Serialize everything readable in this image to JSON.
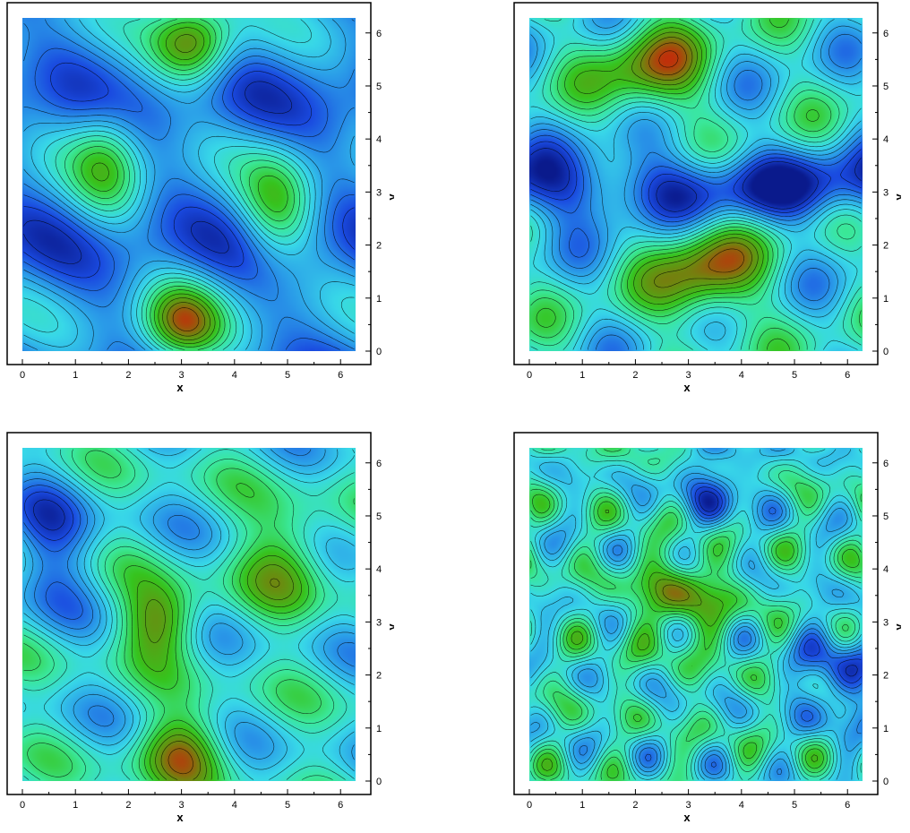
{
  "chart_data": [
    {
      "type": "heatmap",
      "title": "",
      "xlabel": "x",
      "ylabel": "y",
      "xlim": [
        0,
        6.2832
      ],
      "ylim": [
        0,
        6.2832
      ],
      "xticks": [
        "0",
        "1",
        "2",
        "3",
        "4",
        "5",
        "6"
      ],
      "yticks": [
        "0",
        "1",
        "2",
        "3",
        "4",
        "5",
        "6"
      ],
      "contour_lines": true,
      "colormap": [
        "#0a1a8c",
        "#1a4ae0",
        "#2a9ae8",
        "#38d8e8",
        "#3ae89a",
        "#36c41e",
        "#6a8c10",
        "#c0300a"
      ],
      "features": "smooth sinusoidal field, two diagonal high-value ridges near (3,0.5) and (3.2,5.7)"
    },
    {
      "type": "heatmap",
      "title": "",
      "xlabel": "x",
      "ylabel": "y",
      "xlim": [
        0,
        6.2832
      ],
      "ylim": [
        0,
        6.2832
      ],
      "xticks": [
        "0",
        "1",
        "2",
        "3",
        "4",
        "5",
        "6"
      ],
      "yticks": [
        "0",
        "1",
        "2",
        "3",
        "4",
        "5",
        "6"
      ],
      "contour_lines": true,
      "colormap": [
        "#0a1a8c",
        "#1a4ae0",
        "#2a9ae8",
        "#38d8e8",
        "#3ae89a",
        "#36c41e",
        "#6a8c10",
        "#c0300a"
      ],
      "features": "shock fronts forming, central low-value band near y=3"
    },
    {
      "type": "heatmap",
      "title": "",
      "xlabel": "x",
      "ylabel": "y",
      "xlim": [
        0,
        6.2832
      ],
      "ylim": [
        0,
        6.2832
      ],
      "xticks": [
        "0",
        "1",
        "2",
        "3",
        "4",
        "5",
        "6"
      ],
      "yticks": [
        "0",
        "1",
        "2",
        "3",
        "4",
        "5",
        "6"
      ],
      "contour_lines": true,
      "colormap": [
        "#0a1a8c",
        "#1a4ae0",
        "#2a9ae8",
        "#38d8e8",
        "#3ae89a",
        "#36c41e",
        "#6a8c10",
        "#c0300a"
      ],
      "features": "interacting shocks with central structure near (2.6,3.0)"
    },
    {
      "type": "heatmap",
      "title": "",
      "xlabel": "x",
      "ylabel": "y",
      "xlim": [
        0,
        6.2832
      ],
      "ylim": [
        0,
        6.2832
      ],
      "xticks": [
        "0",
        "1",
        "2",
        "3",
        "4",
        "5",
        "6"
      ],
      "yticks": [
        "0",
        "1",
        "2",
        "3",
        "4",
        "5",
        "6"
      ],
      "contour_lines": true,
      "colormap": [
        "#0a1a8c",
        "#1a4ae0",
        "#2a9ae8",
        "#38d8e8",
        "#3ae89a",
        "#36c41e",
        "#6a8c10",
        "#c0300a"
      ],
      "features": "turbulent field with many small vortical structures"
    }
  ]
}
